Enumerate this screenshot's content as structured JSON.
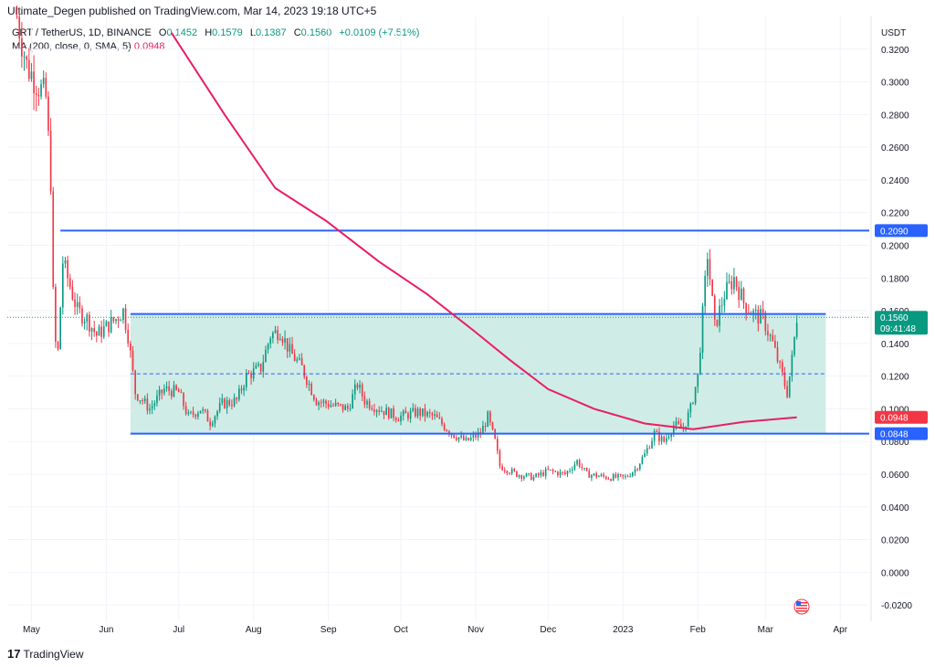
{
  "header": {
    "publisher": "Ultimate_Degen published on TradingView.com, Mar 14, 2023 19:18 UTC+5"
  },
  "legend": {
    "symbol": "GRT / TetherUS, 1D, BINANCE",
    "open_label": "O",
    "open": "0.1452",
    "high_label": "H",
    "high": "0.1579",
    "low_label": "L",
    "low": "0.1387",
    "close_label": "C",
    "close": "0.1560",
    "change": "+0.0109 (+7.51%)",
    "ma_label": "MA (200, close, 0, SMA, 5)",
    "ma_value": "0.0948"
  },
  "footer": {
    "logo_mark": "17",
    "logo_text": "TradingView"
  },
  "colors": {
    "up": "#089981",
    "down": "#f23645",
    "ma": "#e91e63",
    "level_line": "#2962ff",
    "range_fill": "#cbeae3",
    "grid": "#f0f3fa"
  },
  "chart_data": {
    "type": "candlestick",
    "symbol": "GRT / TetherUS",
    "interval": "1D",
    "exchange": "BINANCE",
    "y_axis_unit": "USDT",
    "ylim": [
      -0.03,
      0.34
    ],
    "y_ticks": [
      "0.3200",
      "0.3000",
      "0.2800",
      "0.2600",
      "0.2400",
      "0.2200",
      "0.2000",
      "0.1800",
      "0.1600",
      "0.1400",
      "0.1200",
      "0.1000",
      "0.0800",
      "0.0600",
      "0.0400",
      "0.0200",
      "0.0000",
      "-0.0200"
    ],
    "y_tick_values": [
      0.32,
      0.3,
      0.28,
      0.26,
      0.24,
      0.22,
      0.2,
      0.18,
      0.16,
      0.14,
      0.12,
      0.1,
      0.08,
      0.06,
      0.04,
      0.02,
      0.0,
      -0.02
    ],
    "x_labels": [
      "May",
      "Jun",
      "Jul",
      "Aug",
      "Sep",
      "Oct",
      "Nov",
      "Dec",
      "2023",
      "Feb",
      "Mar",
      "Apr"
    ],
    "x_label_dates": [
      "2022-05-01",
      "2022-06-01",
      "2022-07-01",
      "2022-08-01",
      "2022-09-01",
      "2022-10-01",
      "2022-11-01",
      "2022-12-01",
      "2023-01-01",
      "2023-02-01",
      "2023-03-01",
      "2023-04-01"
    ],
    "x_range": [
      "2022-04-21",
      "2023-04-13"
    ],
    "close_path": [
      [
        "2022-04-25",
        0.34
      ],
      [
        "2022-04-29",
        0.31
      ],
      [
        "2022-05-03",
        0.3
      ],
      [
        "2022-05-07",
        0.29
      ],
      [
        "2022-05-09",
        0.24
      ],
      [
        "2022-05-10",
        0.17
      ],
      [
        "2022-05-11",
        0.14
      ],
      [
        "2022-05-12",
        0.135
      ],
      [
        "2022-05-14",
        0.19
      ],
      [
        "2022-05-16",
        0.18
      ],
      [
        "2022-05-20",
        0.16
      ],
      [
        "2022-05-24",
        0.155
      ],
      [
        "2022-05-28",
        0.145
      ],
      [
        "2022-06-01",
        0.15
      ],
      [
        "2022-06-05",
        0.155
      ],
      [
        "2022-06-08",
        0.16
      ],
      [
        "2022-06-10",
        0.145
      ],
      [
        "2022-06-13",
        0.11
      ],
      [
        "2022-06-16",
        0.105
      ],
      [
        "2022-06-19",
        0.1
      ],
      [
        "2022-06-25",
        0.112
      ],
      [
        "2022-07-01",
        0.11
      ],
      [
        "2022-07-05",
        0.095
      ],
      [
        "2022-07-10",
        0.1
      ],
      [
        "2022-07-14",
        0.092
      ],
      [
        "2022-07-19",
        0.103
      ],
      [
        "2022-07-25",
        0.105
      ],
      [
        "2022-07-29",
        0.12
      ],
      [
        "2022-08-04",
        0.125
      ],
      [
        "2022-08-08",
        0.145
      ],
      [
        "2022-08-12",
        0.148
      ],
      [
        "2022-08-16",
        0.135
      ],
      [
        "2022-08-21",
        0.125
      ],
      [
        "2022-08-27",
        0.105
      ],
      [
        "2022-09-03",
        0.102
      ],
      [
        "2022-09-09",
        0.1
      ],
      [
        "2022-09-13",
        0.115
      ],
      [
        "2022-09-16",
        0.105
      ],
      [
        "2022-09-22",
        0.1
      ],
      [
        "2022-09-30",
        0.095
      ],
      [
        "2022-10-08",
        0.098
      ],
      [
        "2022-10-15",
        0.095
      ],
      [
        "2022-10-22",
        0.085
      ],
      [
        "2022-10-28",
        0.08
      ],
      [
        "2022-11-03",
        0.085
      ],
      [
        "2022-11-06",
        0.095
      ],
      [
        "2022-11-09",
        0.08
      ],
      [
        "2022-11-11",
        0.065
      ],
      [
        "2022-11-18",
        0.06
      ],
      [
        "2022-11-25",
        0.058
      ],
      [
        "2022-12-01",
        0.062
      ],
      [
        "2022-12-08",
        0.06
      ],
      [
        "2022-12-13",
        0.068
      ],
      [
        "2022-12-17",
        0.06
      ],
      [
        "2022-12-26",
        0.058
      ],
      [
        "2023-01-02",
        0.058
      ],
      [
        "2023-01-06",
        0.063
      ],
      [
        "2023-01-10",
        0.072
      ],
      [
        "2023-01-14",
        0.085
      ],
      [
        "2023-01-18",
        0.08
      ],
      [
        "2023-01-22",
        0.09
      ],
      [
        "2023-01-26",
        0.088
      ],
      [
        "2023-01-29",
        0.1
      ],
      [
        "2023-02-01",
        0.12
      ],
      [
        "2023-02-05",
        0.195
      ],
      [
        "2023-02-06",
        0.18
      ],
      [
        "2023-02-08",
        0.15
      ],
      [
        "2023-02-12",
        0.17
      ],
      [
        "2023-02-16",
        0.18
      ],
      [
        "2023-02-20",
        0.165
      ],
      [
        "2023-02-24",
        0.158
      ],
      [
        "2023-02-28",
        0.155
      ],
      [
        "2023-03-04",
        0.14
      ],
      [
        "2023-03-07",
        0.125
      ],
      [
        "2023-03-10",
        0.11
      ],
      [
        "2023-03-12",
        0.13
      ],
      [
        "2023-03-14",
        0.156
      ]
    ],
    "ma": {
      "label": "MA (200, close, 0, SMA, 5)",
      "points": [
        [
          "2022-06-28",
          0.33
        ],
        [
          "2022-07-20",
          0.28
        ],
        [
          "2022-08-10",
          0.235
        ],
        [
          "2022-08-31",
          0.215
        ],
        [
          "2022-09-22",
          0.19
        ],
        [
          "2022-10-12",
          0.17
        ],
        [
          "2022-10-31",
          0.148
        ],
        [
          "2022-11-15",
          0.13
        ],
        [
          "2022-12-01",
          0.112
        ],
        [
          "2022-12-20",
          0.1
        ],
        [
          "2023-01-10",
          0.091
        ],
        [
          "2023-01-30",
          0.0875
        ],
        [
          "2023-02-20",
          0.092
        ],
        [
          "2023-03-14",
          0.0948
        ]
      ]
    },
    "levels": [
      {
        "value": 0.209,
        "label": "0.2090",
        "from": "2022-05-13",
        "to": "2023-04-13"
      },
      {
        "value": 0.158,
        "from": "2022-06-11",
        "to": "2023-03-26"
      },
      {
        "value": 0.0848,
        "label": "0.0848",
        "from": "2022-06-11",
        "to": "2023-04-13"
      }
    ],
    "midline": {
      "value": 0.1214,
      "from": "2022-06-11",
      "to": "2023-03-26",
      "style": "dashed"
    },
    "range_box": {
      "top": 0.158,
      "bottom": 0.0848,
      "from": "2022-06-11",
      "to": "2023-03-26"
    },
    "last_price": {
      "value": 0.156,
      "label": "0.1560",
      "countdown": "09:41:48"
    },
    "ma_tag": {
      "value": 0.0948,
      "label": "0.0948"
    }
  }
}
